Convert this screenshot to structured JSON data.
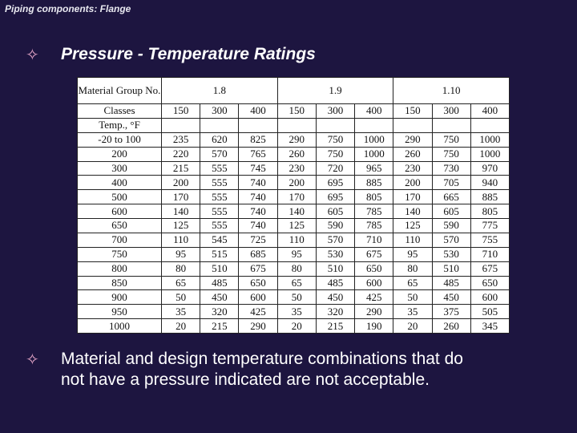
{
  "header": {
    "title": "Piping components: Flange"
  },
  "heading": {
    "text": "Pressure - Temperature Ratings"
  },
  "table": {
    "group_label": "Material Group No.",
    "groups": [
      "1.8",
      "1.9",
      "1.10"
    ],
    "classes_label": "Classes",
    "classes": [
      150,
      300,
      400,
      150,
      300,
      400,
      150,
      300,
      400
    ],
    "temp_label": "Temp., °F",
    "rows": [
      [
        "-20 to 100",
        235,
        620,
        825,
        290,
        750,
        1000,
        290,
        750,
        1000
      ],
      [
        200,
        220,
        570,
        765,
        260,
        750,
        1000,
        260,
        750,
        1000
      ],
      [
        300,
        215,
        555,
        745,
        230,
        720,
        965,
        230,
        730,
        970
      ],
      [
        400,
        200,
        555,
        740,
        200,
        695,
        885,
        200,
        705,
        940
      ],
      [
        500,
        170,
        555,
        740,
        170,
        695,
        805,
        170,
        665,
        885
      ],
      [
        600,
        140,
        555,
        740,
        140,
        605,
        785,
        140,
        605,
        805
      ],
      [
        650,
        125,
        555,
        740,
        125,
        590,
        785,
        125,
        590,
        775
      ],
      [
        700,
        110,
        545,
        725,
        110,
        570,
        710,
        110,
        570,
        755
      ],
      [
        750,
        95,
        515,
        685,
        95,
        530,
        675,
        95,
        530,
        710
      ],
      [
        800,
        80,
        510,
        675,
        80,
        510,
        650,
        80,
        510,
        675
      ],
      [
        850,
        65,
        485,
        650,
        65,
        485,
        600,
        65,
        485,
        650
      ],
      [
        900,
        50,
        450,
        600,
        50,
        450,
        425,
        50,
        450,
        600
      ],
      [
        950,
        35,
        320,
        425,
        35,
        320,
        290,
        35,
        375,
        505
      ],
      [
        1000,
        20,
        215,
        290,
        20,
        215,
        190,
        20,
        260,
        345
      ]
    ]
  },
  "body": {
    "text": "Material and design temperature combinations that do not have a pressure indicated are not acceptable."
  }
}
